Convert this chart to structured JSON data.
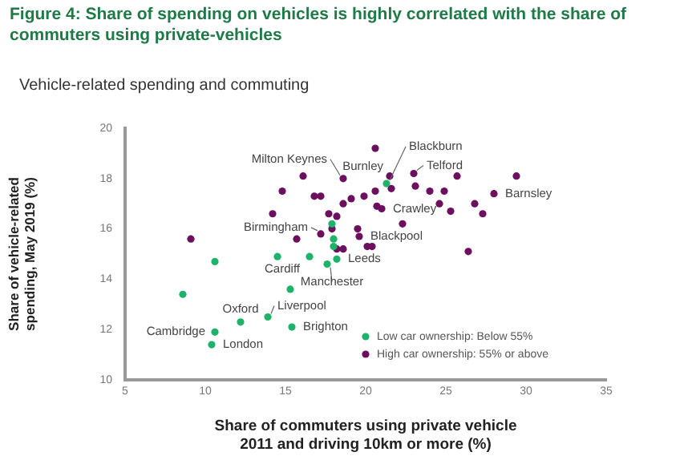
{
  "chart_data": {
    "type": "scatter",
    "title": "Figure 4: Share of spending on vehicles is highly correlated with the share of commuters using private-vehicles",
    "subtitle": "Vehicle-related spending and commuting",
    "xlabel": "Share of commuters using private vehicle 2011 and driving 10km or more (%)",
    "ylabel": "Share of vehicle-related spending, May 2019 (%)",
    "xlim": [
      5,
      35
    ],
    "xticks": [
      5,
      10,
      15,
      20,
      25,
      30,
      35
    ],
    "ylim": [
      10,
      20
    ],
    "yticks": [
      10,
      12,
      14,
      16,
      18,
      20
    ],
    "grid": false,
    "legend": "bottom right",
    "marker": "circle",
    "series": [
      {
        "name": "Low car ownership: Below 55%",
        "color": "#1db36b",
        "x": [
          8.6,
          10.6,
          10.6,
          10.4,
          12.2,
          13.9,
          15.4,
          15.3,
          14.5,
          16.5,
          17.6,
          18.2,
          17.9,
          18.0,
          18.0,
          21.3
        ],
        "values": [
          13.4,
          14.7,
          11.9,
          11.4,
          12.3,
          12.5,
          12.1,
          13.6,
          14.9,
          14.9,
          14.6,
          14.8,
          16.2,
          15.6,
          15.3,
          17.8
        ]
      },
      {
        "name": "High car ownership: 55% or above",
        "color": "#6b0f5e",
        "x": [
          9.1,
          14.2,
          14.8,
          16.1,
          16.8,
          17.2,
          15.7,
          17.2,
          17.9,
          18.2,
          17.7,
          18.6,
          18.6,
          19.1,
          18.2,
          18.6,
          19.9,
          20.6,
          20.6,
          21.5,
          21.6,
          20.7,
          21.0,
          19.5,
          19.6,
          20.1,
          20.4,
          22.3,
          23.0,
          23.1,
          24.0,
          24.9,
          24.6,
          25.3,
          25.7,
          26.4,
          26.8,
          27.3,
          28.0,
          29.4
        ],
        "values": [
          15.6,
          16.6,
          17.5,
          18.1,
          17.3,
          17.3,
          15.6,
          15.8,
          16.0,
          16.5,
          16.6,
          18.0,
          17.0,
          17.2,
          15.2,
          15.2,
          17.3,
          19.2,
          17.5,
          18.1,
          17.6,
          16.9,
          16.8,
          16.0,
          15.7,
          15.3,
          15.3,
          16.2,
          18.2,
          17.7,
          17.5,
          17.5,
          17.0,
          16.7,
          18.1,
          15.1,
          17.0,
          16.6,
          17.4,
          18.1
        ]
      }
    ],
    "annotations": [
      {
        "text": "Blackburn",
        "x": 21.3,
        "y": 17.8
      },
      {
        "text": "Milton Keynes",
        "x": 18.6,
        "y": 18.0
      },
      {
        "text": "Burnley",
        "x": 21.5,
        "y": 18.1
      },
      {
        "text": "Telford",
        "x": 23.0,
        "y": 18.2
      },
      {
        "text": "Barnsley",
        "x": 28.0,
        "y": 17.4
      },
      {
        "text": "Crawley",
        "x": 21.0,
        "y": 16.8
      },
      {
        "text": "Birmingham",
        "x": 17.2,
        "y": 15.8
      },
      {
        "text": "Blackpool",
        "x": 19.6,
        "y": 15.7
      },
      {
        "text": "Cardiff",
        "x": 14.5,
        "y": 14.9
      },
      {
        "text": "Leeds",
        "x": 18.2,
        "y": 14.8
      },
      {
        "text": "Manchester",
        "x": 17.6,
        "y": 14.6
      },
      {
        "text": "Oxford",
        "x": 12.2,
        "y": 12.3
      },
      {
        "text": "Liverpool",
        "x": 13.9,
        "y": 12.5
      },
      {
        "text": "Cambridge",
        "x": 10.6,
        "y": 11.9
      },
      {
        "text": "London",
        "x": 10.4,
        "y": 11.4
      },
      {
        "text": "Brighton",
        "x": 15.4,
        "y": 12.1
      }
    ]
  }
}
